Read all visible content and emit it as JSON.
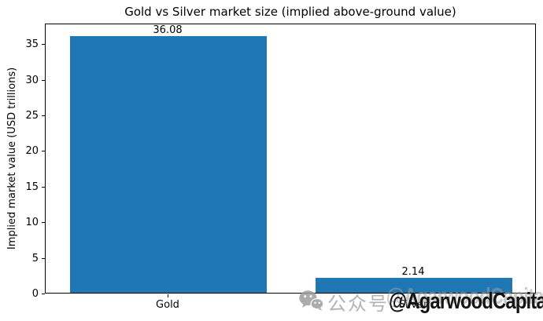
{
  "chart_data": {
    "type": "bar",
    "title": "Gold vs Silver market size (implied above-ground value)",
    "categories": [
      "Gold",
      "Silver"
    ],
    "values": [
      36.08,
      2.14
    ],
    "bar_labels": [
      "36.08",
      "2.14"
    ],
    "xlabel": "",
    "ylabel": "Implied market value (USD trillions)",
    "ylim": [
      0,
      37.9
    ],
    "yticks": [
      0,
      5,
      10,
      15,
      20,
      25,
      30,
      35
    ],
    "bar_color": "#1f77b4",
    "bar_width_fraction": 0.8,
    "grid": false,
    "legend": "none",
    "background": "#ffffff",
    "axis_color": "#000000"
  },
  "watermark": {
    "icon": "wechat-icon",
    "prefix": "公众号",
    "handle": "@AgarwoodCapital",
    "gray_color": "#a6a6a6",
    "text_color": "#141414"
  }
}
